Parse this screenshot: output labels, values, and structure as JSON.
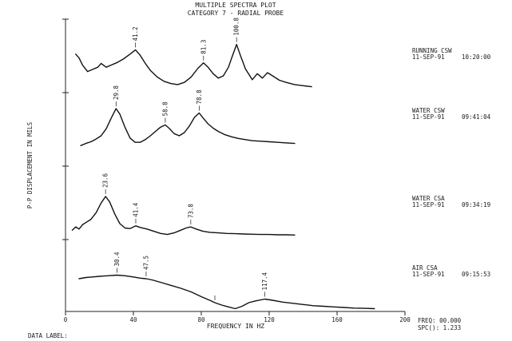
{
  "chart_data": {
    "type": "line",
    "title": "MULTIPLE SPECTRA PLOT",
    "subtitle": "CATEGORY 7 - RADIAL PROBE",
    "xlabel": "FREQUENCY IN HZ",
    "ylabel": "P-P DISPLACEMENT IN MILS",
    "xlim": [
      0,
      200
    ],
    "x_ticks": [
      "0",
      "40",
      "80",
      "120",
      "160",
      "200"
    ],
    "footer_left": "DATA LABEL:",
    "footer_right": [
      "FREQ: 00.000",
      "SPC(): 1.233"
    ],
    "series": [
      {
        "name": "RUNNING CSW",
        "date": "11-SEP-91",
        "time": "10:20:00",
        "peaks": [
          {
            "x": 41.2,
            "label": "41.2"
          },
          {
            "x": 81.3,
            "label": "81.3"
          },
          {
            "x": 100.8,
            "label": "100.8"
          }
        ],
        "x": [
          6,
          8,
          10,
          13,
          16,
          19,
          21,
          24,
          27,
          30,
          34,
          38,
          41.2,
          44,
          47,
          50,
          54,
          58,
          62,
          66,
          70,
          74,
          78,
          81.3,
          84,
          87,
          90,
          93,
          96,
          98,
          100.8,
          103,
          106,
          110,
          113,
          116,
          119,
          122,
          126,
          130,
          135,
          140,
          145
        ],
        "y": [
          0.62,
          0.55,
          0.42,
          0.3,
          0.34,
          0.38,
          0.45,
          0.38,
          0.42,
          0.46,
          0.53,
          0.62,
          0.7,
          0.6,
          0.45,
          0.32,
          0.2,
          0.12,
          0.08,
          0.06,
          0.1,
          0.2,
          0.36,
          0.46,
          0.38,
          0.26,
          0.18,
          0.22,
          0.38,
          0.56,
          0.8,
          0.6,
          0.35,
          0.15,
          0.26,
          0.18,
          0.28,
          0.22,
          0.14,
          0.1,
          0.06,
          0.04,
          0.02
        ]
      },
      {
        "name": "WATER CSW",
        "date": "11-SEP-91",
        "time": "09:41:04",
        "peaks": [
          {
            "x": 29.8,
            "label": "29.8"
          },
          {
            "x": 58.8,
            "label": "58.8"
          },
          {
            "x": 78.8,
            "label": "78.8"
          }
        ],
        "x": [
          9,
          12,
          15,
          18,
          21,
          24,
          27,
          29.8,
          32,
          35,
          38,
          41,
          44,
          47,
          50,
          53,
          56,
          58.8,
          61,
          64,
          67,
          70,
          73,
          76,
          78.8,
          81,
          84,
          87,
          90,
          94,
          98,
          102,
          106,
          110,
          115,
          120,
          125,
          130,
          135
        ],
        "y": [
          0.04,
          0.08,
          0.11,
          0.16,
          0.22,
          0.35,
          0.55,
          0.72,
          0.62,
          0.38,
          0.18,
          0.1,
          0.1,
          0.15,
          0.22,
          0.3,
          0.38,
          0.42,
          0.36,
          0.26,
          0.22,
          0.28,
          0.4,
          0.56,
          0.64,
          0.55,
          0.44,
          0.36,
          0.3,
          0.24,
          0.2,
          0.17,
          0.15,
          0.13,
          0.12,
          0.11,
          0.1,
          0.09,
          0.08
        ]
      },
      {
        "name": "WATER CSA",
        "date": "11-SEP-91",
        "time": "09:34:19",
        "peaks": [
          {
            "x": 23.6,
            "label": "23.6"
          },
          {
            "x": 41.4,
            "label": "41.4"
          },
          {
            "x": 73.8,
            "label": "73.8"
          }
        ],
        "x": [
          4,
          6,
          8,
          10,
          12,
          15,
          18,
          21,
          23.6,
          26,
          29,
          32,
          35,
          38,
          41.4,
          44,
          48,
          52,
          56,
          60,
          64,
          68,
          71,
          73.8,
          77,
          81,
          85,
          90,
          95,
          100,
          105,
          110,
          115,
          120,
          125,
          130,
          135
        ],
        "y": [
          0.1,
          0.16,
          0.12,
          0.2,
          0.24,
          0.3,
          0.42,
          0.6,
          0.72,
          0.62,
          0.4,
          0.22,
          0.14,
          0.13,
          0.18,
          0.15,
          0.12,
          0.08,
          0.04,
          0.02,
          0.05,
          0.1,
          0.14,
          0.16,
          0.12,
          0.08,
          0.06,
          0.05,
          0.04,
          0.035,
          0.03,
          0.025,
          0.02,
          0.02,
          0.015,
          0.015,
          0.01
        ]
      },
      {
        "name": "AIR CSA",
        "date": "11-SEP-91",
        "time": "09:15:53",
        "peaks": [
          {
            "x": 30.4,
            "label": "30.4"
          },
          {
            "x": 47.5,
            "label": "47.5"
          },
          {
            "x": 88.0,
            "label": ""
          },
          {
            "x": 117.4,
            "label": "117.4"
          }
        ],
        "x": [
          8,
          12,
          16,
          20,
          25,
          30.4,
          35,
          40,
          44,
          47.5,
          51,
          56,
          62,
          68,
          74,
          80,
          85,
          88,
          92,
          96,
          100,
          104,
          108,
          112,
          117.4,
          122,
          128,
          134,
          140,
          146,
          152,
          158,
          164,
          170,
          176,
          182
        ],
        "y": [
          0.44,
          0.46,
          0.47,
          0.48,
          0.49,
          0.5,
          0.49,
          0.47,
          0.45,
          0.44,
          0.42,
          0.38,
          0.33,
          0.28,
          0.22,
          0.14,
          0.08,
          0.04,
          0.0,
          -0.03,
          -0.06,
          -0.02,
          0.04,
          0.07,
          0.1,
          0.08,
          0.05,
          0.03,
          0.01,
          -0.01,
          -0.02,
          -0.03,
          -0.04,
          -0.05,
          -0.055,
          -0.06
        ]
      }
    ]
  }
}
